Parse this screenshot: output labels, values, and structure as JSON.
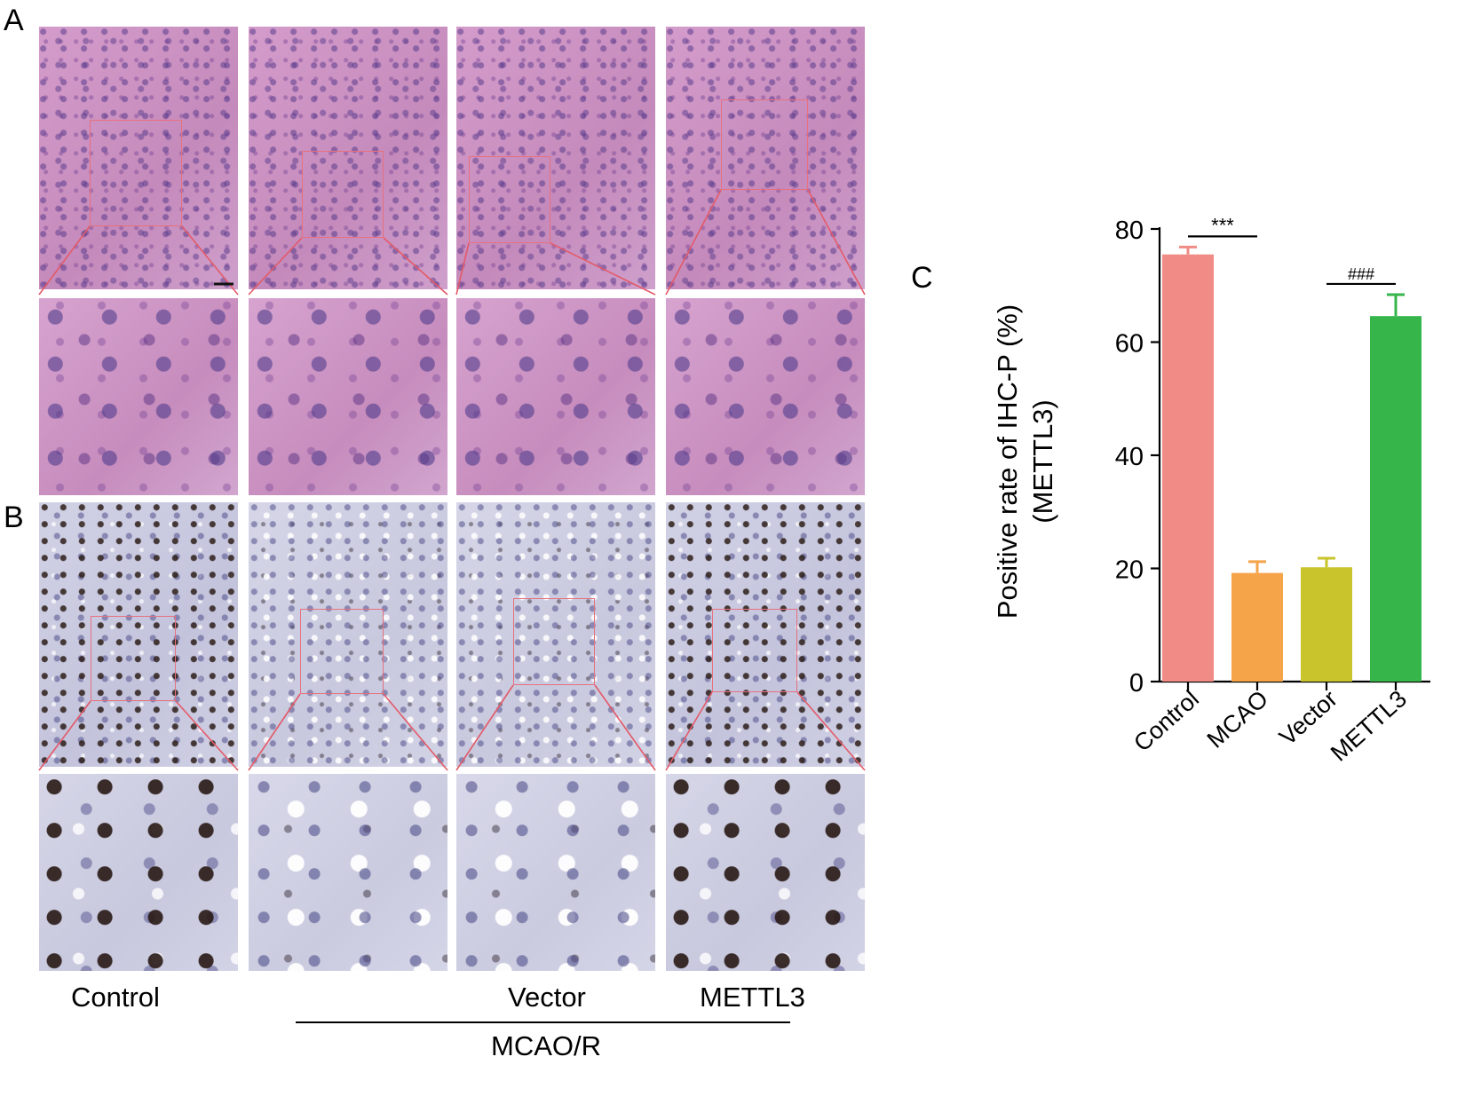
{
  "figure": {
    "panel_labels": {
      "a": "A",
      "b": "B",
      "c": "C"
    },
    "columns": [
      "Control",
      "MCAO",
      "Vector",
      "METTL3"
    ],
    "bottom_labels": {
      "control": "Control",
      "vector": "Vector",
      "mettl3": "METTL3",
      "bracket": "MCAO/R"
    }
  },
  "chart_data": {
    "type": "bar",
    "categories": [
      "Control",
      "MCAO",
      "Vector",
      "METTL3"
    ],
    "values": [
      75.5,
      19.2,
      20.2,
      64.6
    ],
    "errors": [
      1.3,
      2.0,
      1.6,
      3.8
    ],
    "colors": [
      "#f08b85",
      "#f5a44a",
      "#c9c42c",
      "#35b54a"
    ],
    "ylabel_line1": "Positive rate of IHC-P (%)",
    "ylabel_line2": "(METTL3)",
    "ylim": [
      0,
      80
    ],
    "yticks": [
      0,
      20,
      40,
      60,
      80
    ],
    "significance": [
      {
        "from": "Control",
        "to": "MCAO",
        "label": "***"
      },
      {
        "from": "Vector",
        "to": "METTL3",
        "label": "###"
      }
    ]
  }
}
